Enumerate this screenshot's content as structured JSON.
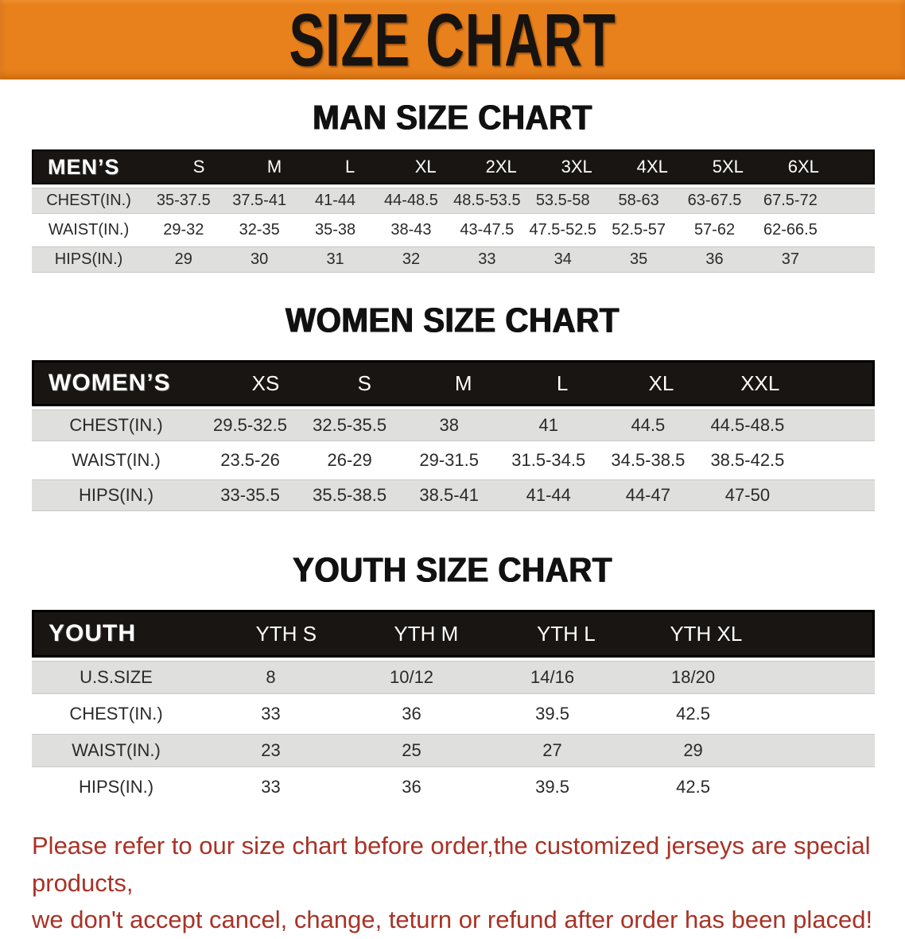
{
  "banner": {
    "title": "SIZE CHART",
    "bg_color": "#E8811B"
  },
  "sections": [
    {
      "heading": "MAN SIZE CHART",
      "table": {
        "corner_label": "MEN’S",
        "columns": [
          "S",
          "M",
          "L",
          "XL",
          "2XL",
          "3XL",
          "4XL",
          "5XL",
          "6XL"
        ],
        "rows": [
          {
            "label": "CHEST(IN.)",
            "values": [
              "35-37.5",
              "37.5-41",
              "41-44",
              "44-48.5",
              "48.5-53.5",
              "53.5-58",
              "58-63",
              "63-67.5",
              "67.5-72"
            ]
          },
          {
            "label": "WAIST(IN.)",
            "values": [
              "29-32",
              "32-35",
              "35-38",
              "38-43",
              "43-47.5",
              "47.5-52.5",
              "52.5-57",
              "57-62",
              "62-66.5"
            ]
          },
          {
            "label": "HIPS(IN.)",
            "values": [
              "29",
              "30",
              "31",
              "32",
              "33",
              "34",
              "35",
              "36",
              "37"
            ]
          }
        ]
      }
    },
    {
      "heading": "WOMEN SIZE CHART",
      "table": {
        "corner_label": "WOMEN’S",
        "columns": [
          "XS",
          "S",
          "M",
          "L",
          "XL",
          "XXL"
        ],
        "rows": [
          {
            "label": "CHEST(IN.)",
            "values": [
              "29.5-32.5",
              "32.5-35.5",
              "38",
              "41",
              "44.5",
              "44.5-48.5"
            ]
          },
          {
            "label": "WAIST(IN.)",
            "values": [
              "23.5-26",
              "26-29",
              "29-31.5",
              "31.5-34.5",
              "34.5-38.5",
              "38.5-42.5"
            ]
          },
          {
            "label": "HIPS(IN.)",
            "values": [
              "33-35.5",
              "35.5-38.5",
              "38.5-41",
              "41-44",
              "44-47",
              "47-50"
            ]
          }
        ]
      }
    },
    {
      "heading": "YOUTH SIZE CHART",
      "table": {
        "corner_label": "YOUTH",
        "columns": [
          "YTH S",
          "YTH M",
          "YTH L",
          "YTH XL"
        ],
        "rows": [
          {
            "label": "U.S.SIZE",
            "values": [
              "8",
              "10/12",
              "14/16",
              "18/20"
            ]
          },
          {
            "label": "CHEST(IN.)",
            "values": [
              "33",
              "36",
              "39.5",
              "42.5"
            ]
          },
          {
            "label": "WAIST(IN.)",
            "values": [
              "23",
              "25",
              "27",
              "29"
            ]
          },
          {
            "label": "HIPS(IN.)",
            "values": [
              "33",
              "36",
              "39.5",
              "42.5"
            ]
          }
        ]
      }
    }
  ],
  "disclaimer": {
    "line1": "Please refer to our size chart before order,the customized jerseys are special products,",
    "line2": "we don't accept cancel, change, teturn or refund after order has been placed!",
    "color": "#A93226"
  }
}
